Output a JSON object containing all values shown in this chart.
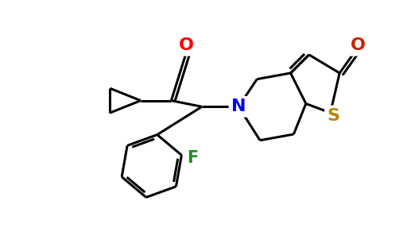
{
  "background_color": "#ffffff",
  "atom_colors": {
    "O_red": "#ff0000",
    "O_dark": "#cc2200",
    "N": "#0000ff",
    "S": "#b8860b",
    "F": "#228b22",
    "C": "#000000"
  },
  "bond_color": "#000000",
  "bond_width": 2.2,
  "figsize": [
    5.12,
    3.11
  ],
  "dpi": 100
}
